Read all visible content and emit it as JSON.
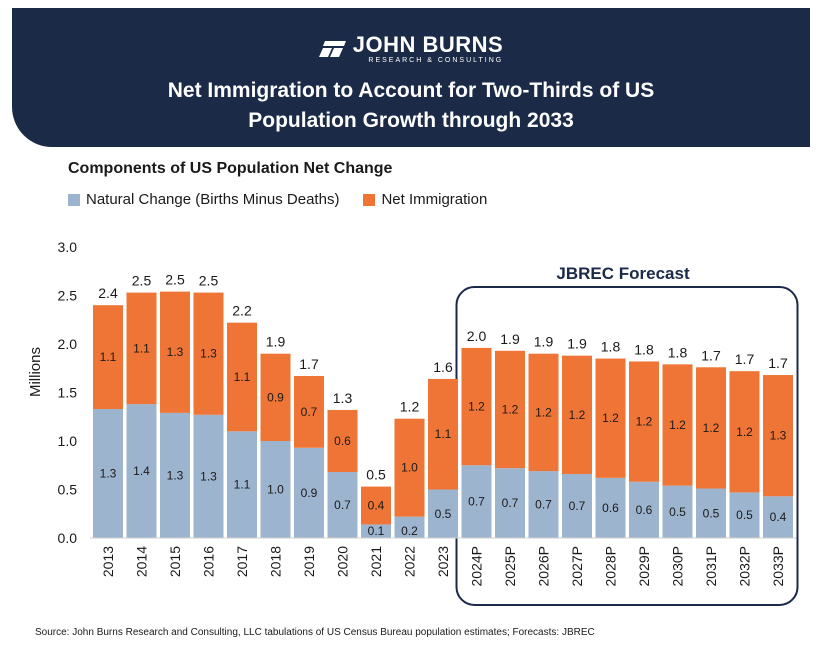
{
  "logo": {
    "name": "JOHN BURNS",
    "tagline": "RESEARCH & CONSULTING"
  },
  "headline": {
    "line1": "Net Immigration to Account for Two-Thirds of US",
    "line2": "Population Growth through 2033"
  },
  "colors": {
    "natural": "#9db4cf",
    "immigration": "#ee7535",
    "banner": "#1b2a47",
    "forecast_box": "#1b2a47"
  },
  "chart_data": {
    "type": "bar",
    "stacked": true,
    "title": "Components of US Population Net Change",
    "ylabel": "Millions",
    "ylim": [
      0,
      3
    ],
    "yticks": [
      "0.0",
      "0.5",
      "1.0",
      "1.5",
      "2.0",
      "2.5",
      "3.0"
    ],
    "grid": false,
    "legend_position": "top-left",
    "categories": [
      "2013",
      "2014",
      "2015",
      "2016",
      "2017",
      "2018",
      "2019",
      "2020",
      "2021",
      "2022",
      "2023",
      "2024P",
      "2025P",
      "2026P",
      "2027P",
      "2028P",
      "2029P",
      "2030P",
      "2031P",
      "2032P",
      "2033P"
    ],
    "series": [
      {
        "name": "Natural Change (Births Minus Deaths)",
        "values": [
          1.33,
          1.38,
          1.29,
          1.27,
          1.1,
          1.0,
          0.93,
          0.68,
          0.14,
          0.22,
          0.5,
          0.75,
          0.72,
          0.69,
          0.66,
          0.62,
          0.58,
          0.54,
          0.51,
          0.47,
          0.43
        ],
        "labels": [
          "1.3",
          "1.4",
          "1.3",
          "1.3",
          "1.1",
          "1.0",
          "0.9",
          "0.7",
          "0.1",
          "0.2",
          "0.5",
          "0.7",
          "0.7",
          "0.7",
          "0.7",
          "0.6",
          "0.6",
          "0.5",
          "0.5",
          "0.5",
          "0.4"
        ]
      },
      {
        "name": "Net Immigration",
        "values": [
          1.07,
          1.15,
          1.25,
          1.26,
          1.12,
          0.9,
          0.74,
          0.64,
          0.39,
          1.01,
          1.14,
          1.21,
          1.21,
          1.21,
          1.22,
          1.23,
          1.24,
          1.25,
          1.25,
          1.25,
          1.25
        ],
        "labels": [
          "1.1",
          "1.1",
          "1.3",
          "1.3",
          "1.1",
          "0.9",
          "0.7",
          "0.6",
          "0.4",
          "1.0",
          "1.1",
          "1.2",
          "1.2",
          "1.2",
          "1.2",
          "1.2",
          "1.2",
          "1.2",
          "1.2",
          "1.2",
          "1.3"
        ]
      }
    ],
    "totals": [
      "2.4",
      "2.5",
      "2.5",
      "2.5",
      "2.2",
      "1.9",
      "1.7",
      "1.3",
      "0.5",
      "1.2",
      "1.6",
      "2.0",
      "1.9",
      "1.9",
      "1.9",
      "1.8",
      "1.8",
      "1.8",
      "1.7",
      "1.7",
      "1.7"
    ],
    "forecast_label": "JBREC Forecast",
    "forecast_start_index": 11
  },
  "source": "Source: John Burns Research and Consulting, LLC tabulations of US Census Bureau population estimates; Forecasts: JBREC"
}
